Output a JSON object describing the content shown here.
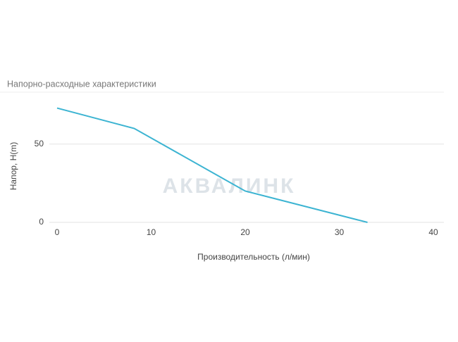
{
  "chart_data": {
    "type": "line",
    "title": "Напорно-расходные характеристики",
    "xlabel": "Производительность (л/мин)",
    "ylabel": "Напор, H(m)",
    "watermark": "АКВАЛИНК",
    "x": [
      0,
      8.2,
      20,
      33
    ],
    "series": [
      {
        "color": "#3cb4d2",
        "values": [
          73,
          60,
          20,
          0
        ]
      }
    ],
    "xlim": [
      0,
      40
    ],
    "xticks": [
      0,
      10,
      20,
      30,
      40
    ],
    "ylim": [
      0,
      80
    ],
    "yticks": [
      0,
      50
    ],
    "grid": true
  }
}
